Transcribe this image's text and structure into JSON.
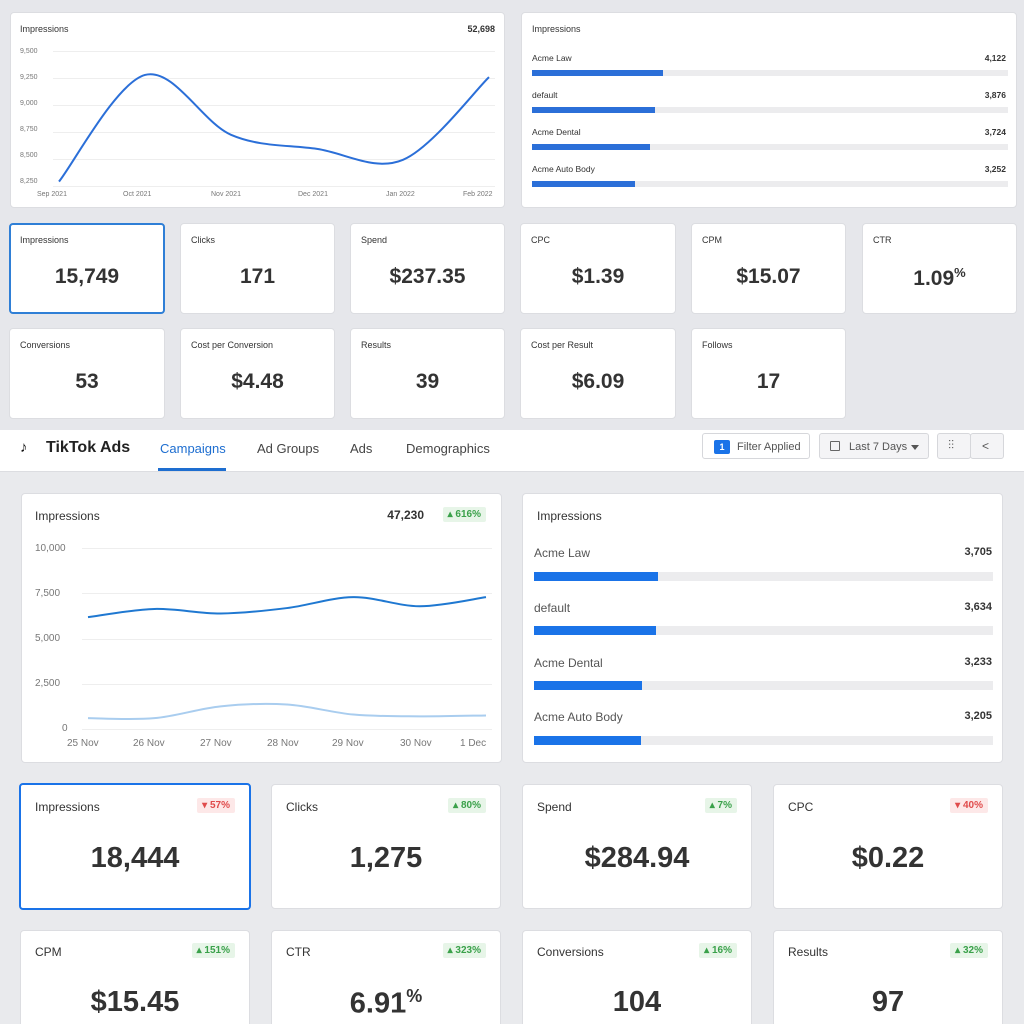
{
  "top": {
    "line_chart": {
      "title": "Impressions",
      "total": "52,698",
      "y_ticks": [
        "9,500",
        "9,250",
        "9,000",
        "8,750",
        "8,500",
        "8,250"
      ],
      "x_ticks": [
        "Sep 2021",
        "Oct 2021",
        "Nov 2021",
        "Dec 2021",
        "Jan 2022",
        "Feb 2022"
      ]
    },
    "bar_list": {
      "title": "Impressions",
      "items": [
        {
          "label": "Acme Law",
          "value": "4,122"
        },
        {
          "label": "default",
          "value": "3,876"
        },
        {
          "label": "Acme Dental",
          "value": "3,724"
        },
        {
          "label": "Acme Auto Body",
          "value": "3,252"
        }
      ]
    },
    "metrics": [
      {
        "label": "Impressions",
        "value": "15,749"
      },
      {
        "label": "Clicks",
        "value": "171"
      },
      {
        "label": "Spend",
        "value": "$237.35"
      },
      {
        "label": "CPC",
        "value": "$1.39"
      },
      {
        "label": "CPM",
        "value": "$15.07"
      },
      {
        "label": "CTR",
        "value": "1.09",
        "suffix": "%"
      },
      {
        "label": "Conversions",
        "value": "53"
      },
      {
        "label": "Cost per Conversion",
        "value": "$4.48"
      },
      {
        "label": "Results",
        "value": "39"
      },
      {
        "label": "Cost per Result",
        "value": "$6.09"
      },
      {
        "label": "Follows",
        "value": "17"
      }
    ]
  },
  "nav": {
    "brand": "TikTok Ads",
    "tabs": [
      "Campaigns",
      "Ad Groups",
      "Ads",
      "Demographics"
    ],
    "active_tab": "Campaigns",
    "filter_count": "1",
    "filter_label": "Filter Applied",
    "date_range": "Last 7 Days"
  },
  "bottom": {
    "line_chart": {
      "title": "Impressions",
      "total": "47,230",
      "change": "616%",
      "y_ticks": [
        "10,000",
        "7,500",
        "5,000",
        "2,500",
        "0"
      ],
      "x_ticks": [
        "25 Nov",
        "26 Nov",
        "27 Nov",
        "28 Nov",
        "29 Nov",
        "30 Nov",
        "1 Dec"
      ]
    },
    "bar_list": {
      "title": "Impressions",
      "items": [
        {
          "label": "Acme Law",
          "value": "3,705"
        },
        {
          "label": "default",
          "value": "3,634"
        },
        {
          "label": "Acme Dental",
          "value": "3,233"
        },
        {
          "label": "Acme Auto Body",
          "value": "3,205"
        }
      ]
    },
    "metrics": [
      {
        "label": "Impressions",
        "value": "18,444",
        "change": "57%",
        "dir": "down"
      },
      {
        "label": "Clicks",
        "value": "1,275",
        "change": "80%",
        "dir": "up"
      },
      {
        "label": "Spend",
        "value": "$284.94",
        "change": "7%",
        "dir": "up"
      },
      {
        "label": "CPC",
        "value": "$0.22",
        "change": "40%",
        "dir": "down"
      },
      {
        "label": "CPM",
        "value": "$15.45",
        "change": "151%",
        "dir": "up"
      },
      {
        "label": "CTR",
        "value": "6.91",
        "suffix": "%",
        "change": "323%",
        "dir": "up"
      },
      {
        "label": "Conversions",
        "value": "104",
        "change": "16%",
        "dir": "up"
      },
      {
        "label": "Results",
        "value": "97",
        "change": "32%",
        "dir": "up"
      }
    ]
  },
  "chart_data": [
    {
      "type": "line",
      "title": "Impressions",
      "x": [
        "Sep 2021",
        "Oct 2021",
        "Nov 2021",
        "Dec 2021",
        "Jan 2022",
        "Feb 2022"
      ],
      "series": [
        {
          "values": [
            8300,
            9280,
            8730,
            8600,
            8500,
            9260
          ]
        }
      ],
      "ylim": [
        8250,
        9500
      ],
      "color": "#2b6fd8"
    },
    {
      "type": "bar",
      "title": "Impressions",
      "categories": [
        "Acme Law",
        "default",
        "Acme Dental",
        "Acme Auto Body"
      ],
      "values": [
        4122,
        3876,
        3724,
        3252
      ],
      "orientation": "horizontal"
    },
    {
      "type": "line",
      "title": "Impressions",
      "x": [
        "25 Nov",
        "26 Nov",
        "27 Nov",
        "28 Nov",
        "29 Nov",
        "30 Nov",
        "1 Dec"
      ],
      "series": [
        {
          "values": [
            6200,
            6650,
            6400,
            6700,
            7300,
            6800,
            7300
          ],
          "color": "#1f78d1"
        },
        {
          "values": [
            650,
            650,
            1300,
            1400,
            850,
            750,
            800
          ],
          "color": "#a9cdef"
        }
      ],
      "ylim": [
        0,
        10000
      ]
    },
    {
      "type": "bar",
      "title": "Impressions",
      "categories": [
        "Acme Law",
        "default",
        "Acme Dental",
        "Acme Auto Body"
      ],
      "values": [
        3705,
        3634,
        3233,
        3205
      ],
      "orientation": "horizontal"
    }
  ]
}
